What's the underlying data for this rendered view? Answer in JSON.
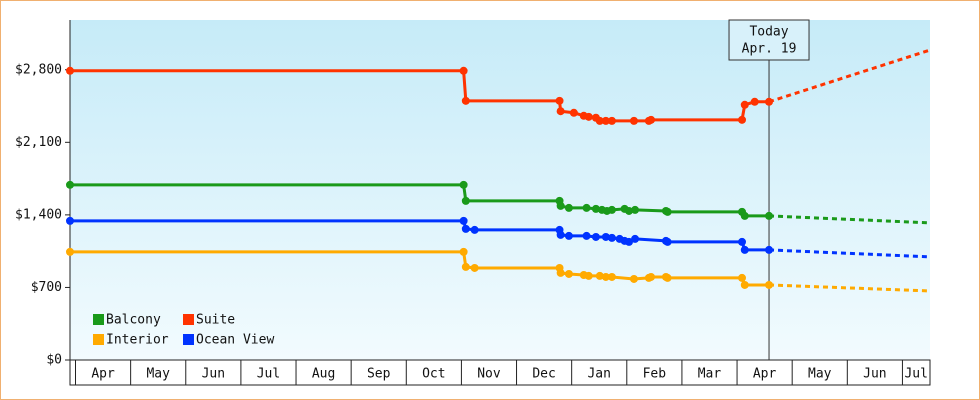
{
  "chart_data": {
    "type": "line",
    "ylim": [
      0,
      3280
    ],
    "yticks": [
      {
        "value": 0,
        "label": "$0"
      },
      {
        "value": 700,
        "label": "$700"
      },
      {
        "value": 1400,
        "label": "$1,400"
      },
      {
        "value": 2100,
        "label": "$2,100"
      },
      {
        "value": 2800,
        "label": "$2,800"
      }
    ],
    "xlim": [
      -0.1,
      15.5
    ],
    "xticks": [
      {
        "value": 0.5,
        "label": "Apr"
      },
      {
        "value": 1.5,
        "label": "May"
      },
      {
        "value": 2.5,
        "label": "Jun"
      },
      {
        "value": 3.5,
        "label": "Jul"
      },
      {
        "value": 4.5,
        "label": "Aug"
      },
      {
        "value": 5.5,
        "label": "Sep"
      },
      {
        "value": 6.5,
        "label": "Oct"
      },
      {
        "value": 7.5,
        "label": "Nov"
      },
      {
        "value": 8.5,
        "label": "Dec"
      },
      {
        "value": 9.5,
        "label": "Jan"
      },
      {
        "value": 10.5,
        "label": "Feb"
      },
      {
        "value": 11.5,
        "label": "Mar"
      },
      {
        "value": 12.5,
        "label": "Apr"
      },
      {
        "value": 13.5,
        "label": "May"
      },
      {
        "value": 14.5,
        "label": "Jun"
      },
      {
        "value": 15.25,
        "label": "Jul"
      }
    ],
    "annotation": {
      "x": 12.58,
      "lines": [
        "Today",
        "Apr. 19"
      ]
    },
    "legend": "lower left",
    "series": [
      {
        "name": "Balcony",
        "color": "#1a9a1a",
        "x": [
          -0.1,
          7.04,
          7.08,
          8.78,
          8.8,
          8.95,
          9.27,
          9.44,
          9.55,
          9.64,
          9.73,
          9.96,
          10.04,
          10.15,
          10.71,
          10.74,
          12.09,
          12.14,
          12.58
        ],
        "values": [
          1690,
          1690,
          1535,
          1535,
          1487,
          1467,
          1467,
          1458,
          1448,
          1438,
          1448,
          1458,
          1438,
          1448,
          1438,
          1429,
          1429,
          1390,
          1390
        ],
        "forecast": {
          "x": [
            12.58,
            15.5
          ],
          "values": [
            1390,
            1323
          ]
        }
      },
      {
        "name": "Suite",
        "color": "#ff3300",
        "x": [
          -0.1,
          7.04,
          7.08,
          8.78,
          8.8,
          9.04,
          9.22,
          9.31,
          9.44,
          9.51,
          9.62,
          9.73,
          10.13,
          10.4,
          10.44,
          12.09,
          12.14,
          12.32,
          12.58
        ],
        "values": [
          2790,
          2790,
          2500,
          2500,
          2400,
          2385,
          2356,
          2346,
          2337,
          2307,
          2307,
          2307,
          2307,
          2307,
          2317,
          2317,
          2462,
          2491,
          2491
        ],
        "forecast": {
          "x": [
            12.58,
            15.5
          ],
          "values": [
            2491,
            2990
          ]
        }
      },
      {
        "name": "Interior",
        "color": "#ffaa00",
        "x": [
          -0.1,
          7.04,
          7.08,
          7.24,
          8.78,
          8.8,
          8.95,
          9.22,
          9.31,
          9.51,
          9.62,
          9.73,
          10.13,
          10.4,
          10.44,
          10.71,
          10.74,
          12.09,
          12.14,
          12.58
        ],
        "values": [
          1043,
          1043,
          898,
          888,
          888,
          840,
          830,
          820,
          811,
          811,
          801,
          801,
          782,
          792,
          801,
          801,
          792,
          792,
          724,
          724
        ],
        "forecast": {
          "x": [
            12.58,
            15.5
          ],
          "values": [
            724,
            666
          ]
        }
      },
      {
        "name": "Ocean View",
        "color": "#0033ff",
        "x": [
          -0.1,
          7.04,
          7.08,
          7.24,
          8.78,
          8.8,
          8.95,
          9.27,
          9.44,
          9.62,
          9.73,
          9.87,
          9.96,
          10.04,
          10.15,
          10.71,
          10.74,
          12.09,
          12.14,
          12.58
        ],
        "values": [
          1342,
          1342,
          1265,
          1255,
          1255,
          1207,
          1197,
          1197,
          1187,
          1187,
          1178,
          1168,
          1149,
          1139,
          1168,
          1149,
          1139,
          1139,
          1062,
          1062
        ],
        "forecast": {
          "x": [
            12.58,
            15.5
          ],
          "values": [
            1062,
            995
          ]
        }
      }
    ]
  }
}
